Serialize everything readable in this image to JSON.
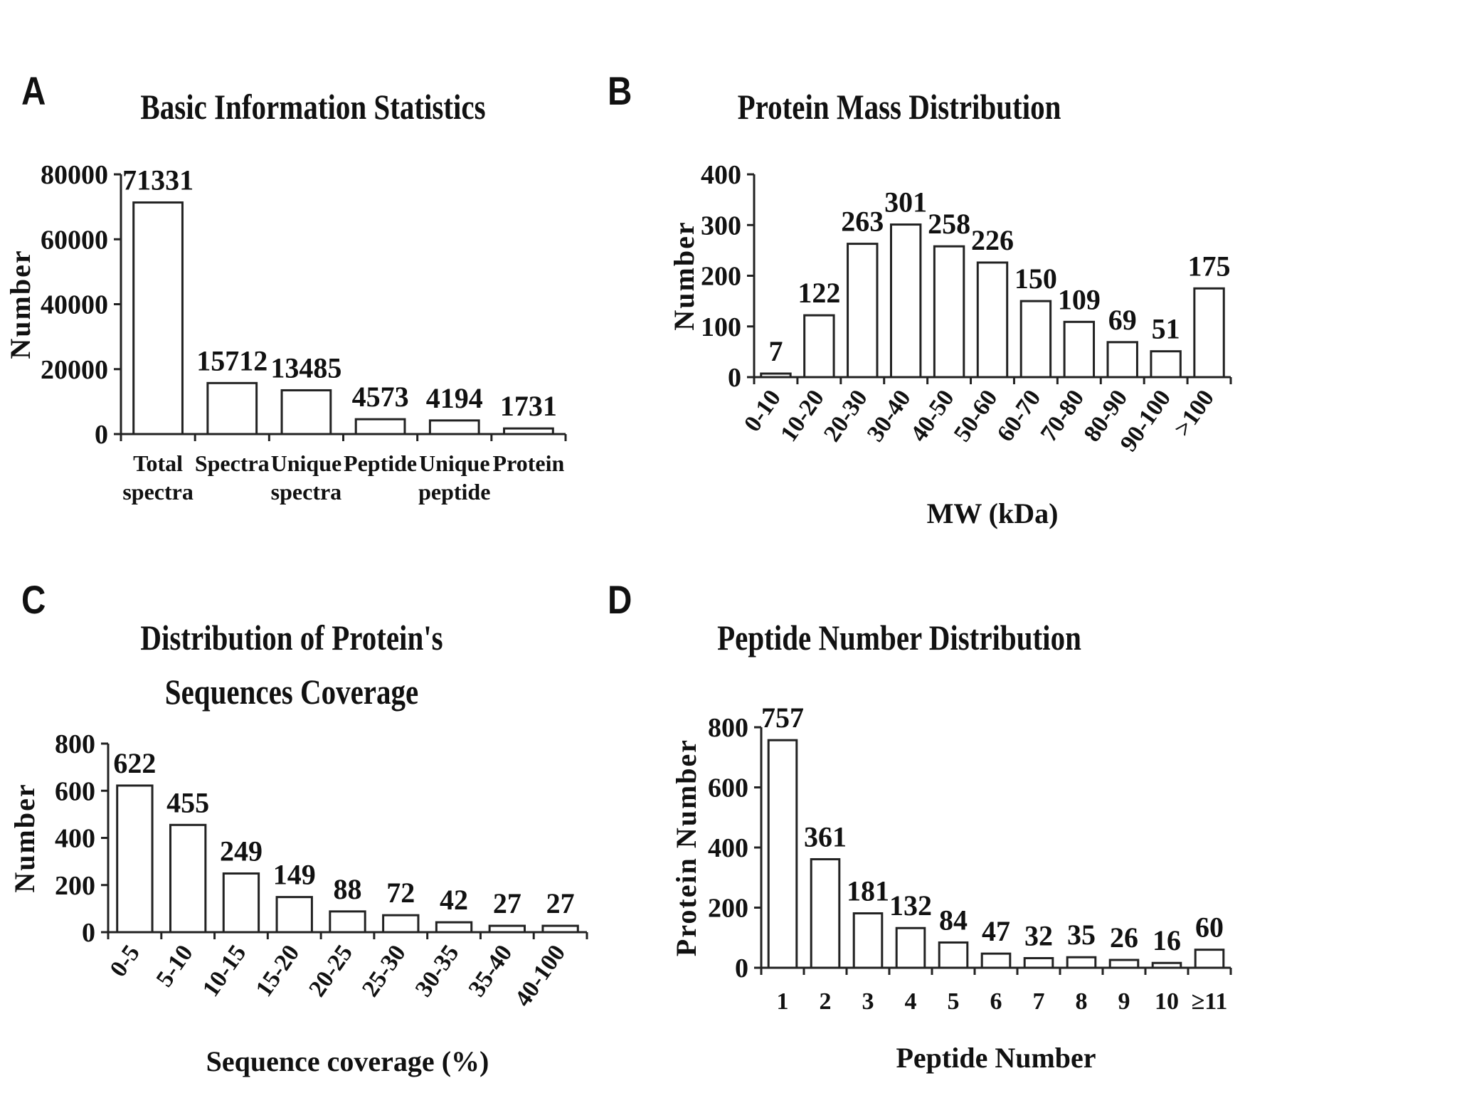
{
  "panels": [
    {
      "letter": "A"
    },
    {
      "letter": "B"
    },
    {
      "letter": "C"
    },
    {
      "letter": "D"
    }
  ],
  "chart_data": [
    {
      "type": "bar",
      "title": "Basic Information Statistics",
      "categories": [
        "Total spectra",
        "Spectra",
        "Unique spectra",
        "Peptide",
        "Unique peptide",
        "Protein"
      ],
      "values": [
        71331,
        15712,
        13485,
        4573,
        4194,
        1731
      ],
      "xlabel": "",
      "ylabel": "Number",
      "ylim": [
        0,
        80000
      ],
      "yticks": [
        0,
        20000,
        40000,
        60000,
        80000
      ],
      "grid": false,
      "legend": "none"
    },
    {
      "type": "bar",
      "title": "Protein Mass Distribution",
      "categories": [
        "0-10",
        "10-20",
        "20-30",
        "30-40",
        "40-50",
        "50-60",
        "60-70",
        "70-80",
        "80-90",
        "90-100",
        ">100"
      ],
      "values": [
        7,
        122,
        263,
        301,
        258,
        226,
        150,
        109,
        69,
        51,
        175
      ],
      "xlabel": "MW (kDa)",
      "ylabel": "Number",
      "ylim": [
        0,
        400
      ],
      "yticks": [
        0,
        100,
        200,
        300,
        400
      ],
      "grid": false,
      "legend": "none"
    },
    {
      "type": "bar",
      "title": "Distribution of Protein's Sequences Coverage",
      "categories": [
        "0-5",
        "5-10",
        "10-15",
        "15-20",
        "20-25",
        "25-30",
        "30-35",
        "35-40",
        "40-100"
      ],
      "values": [
        622,
        455,
        249,
        149,
        88,
        72,
        42,
        27,
        27
      ],
      "xlabel": "Sequence coverage (%)",
      "ylabel": "Number",
      "ylim": [
        0,
        800
      ],
      "yticks": [
        0,
        200,
        400,
        600,
        800
      ],
      "grid": false,
      "legend": "none"
    },
    {
      "type": "bar",
      "title": "Peptide Number Distribution",
      "categories": [
        "1",
        "2",
        "3",
        "4",
        "5",
        "6",
        "7",
        "8",
        "9",
        "10",
        "≥11"
      ],
      "values": [
        757,
        361,
        181,
        132,
        84,
        47,
        32,
        35,
        26,
        16,
        60
      ],
      "xlabel": "Peptide Number",
      "ylabel": "Protein Number",
      "ylim": [
        0,
        800
      ],
      "yticks": [
        0,
        200,
        400,
        600,
        800
      ],
      "grid": false,
      "legend": "none"
    }
  ]
}
